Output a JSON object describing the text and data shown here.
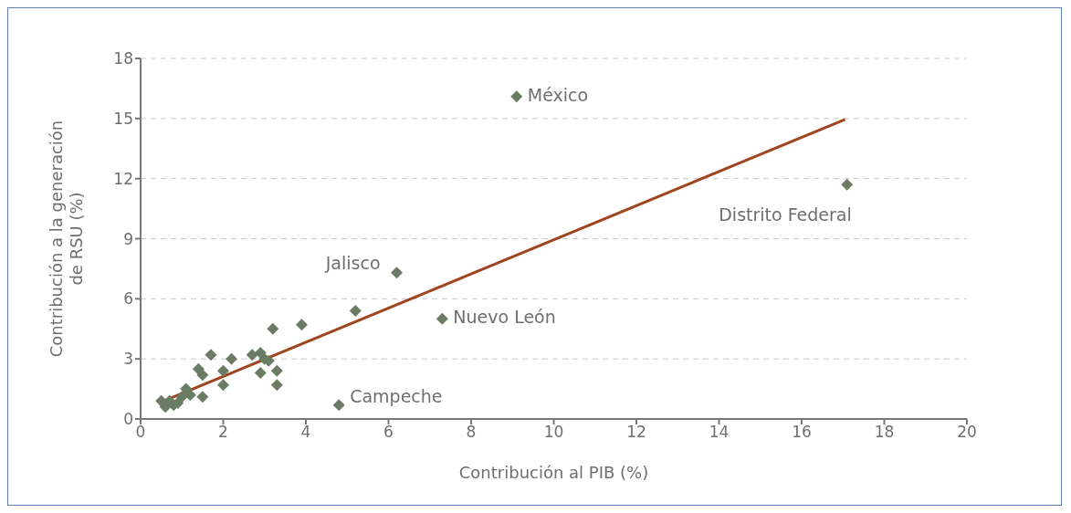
{
  "chart_data": {
    "type": "scatter",
    "xlabel": "Contribución al PIB (%)",
    "ylabel": "Contribución a la generación de RSU (%)",
    "xlim": [
      0,
      20
    ],
    "xticks": [
      0,
      2,
      4,
      6,
      8,
      10,
      12,
      14,
      16,
      18,
      20
    ],
    "ylim": [
      0,
      18
    ],
    "yticks": [
      0,
      3,
      6,
      9,
      12,
      15,
      18
    ],
    "grid": "y",
    "marker": "diamond",
    "legend": false,
    "series": [
      {
        "color": "#6b7c64",
        "x": [
          9.1,
          17.1,
          6.2,
          7.3,
          4.8,
          5.2,
          3.9,
          3.2,
          1.7,
          2.2,
          2.9,
          2.7,
          3.0,
          3.1,
          2.9,
          3.3,
          3.3,
          2.0,
          2.0,
          1.4,
          1.5,
          1.5,
          1.1,
          1.0,
          0.7,
          0.6,
          0.8,
          0.5,
          0.9,
          1.2
        ],
        "values": [
          16.1,
          11.7,
          7.3,
          5.0,
          0.7,
          5.4,
          4.7,
          4.5,
          3.2,
          3.0,
          3.3,
          3.2,
          3.0,
          2.9,
          2.3,
          2.4,
          1.7,
          2.4,
          1.7,
          2.5,
          2.2,
          1.1,
          1.5,
          1.1,
          0.9,
          0.6,
          0.7,
          0.9,
          0.8,
          1.2
        ]
      },
      {
        "type": "line",
        "marker": "none",
        "color": "#a0441e",
        "x": [
          0.5,
          17.05
        ],
        "values": [
          0.85,
          14.95
        ]
      }
    ],
    "annotations": [
      {
        "text": "México",
        "x": 9.1,
        "y": 16.1
      },
      {
        "text": "Distrito Federal",
        "x": 17.1,
        "y": 11.7
      },
      {
        "text": "Jalisco",
        "x": 6.2,
        "y": 7.3
      },
      {
        "text": "Nuevo León",
        "x": 7.3,
        "y": 5.0
      },
      {
        "text": "Campeche",
        "x": 4.8,
        "y": 0.7
      }
    ]
  }
}
